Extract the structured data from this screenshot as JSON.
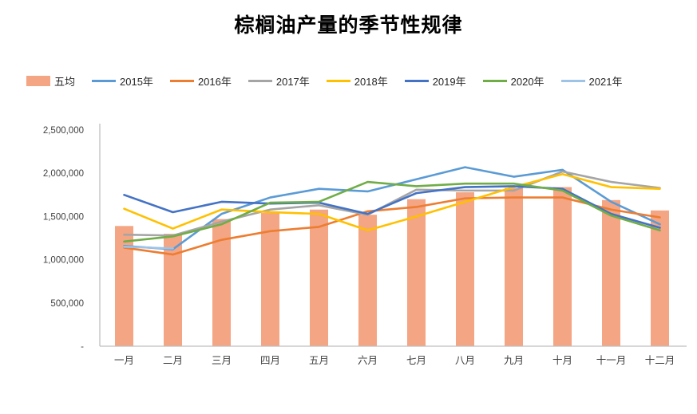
{
  "title": "棕榈油产量的季节性规律",
  "colors": {
    "axis_line": "#bfbfbf",
    "tick_text": "#404040",
    "title_text": "#000000",
    "background": "#ffffff"
  },
  "chart_data": {
    "type": "combo-bar-line",
    "title": "棕榈油产量的季节性规律",
    "xlabel": "",
    "ylabel": "",
    "ylim": [
      0,
      2500000
    ],
    "grid": false,
    "legend_position": "top-left",
    "categories": [
      "一月",
      "二月",
      "三月",
      "四月",
      "五月",
      "六月",
      "七月",
      "八月",
      "九月",
      "十月",
      "十一月",
      "十二月"
    ],
    "y_ticks": [
      {
        "value": 0,
        "label": "-"
      },
      {
        "value": 500000,
        "label": "500,000"
      },
      {
        "value": 1000000,
        "label": "1,000,000"
      },
      {
        "value": 1500000,
        "label": "1,500,000"
      },
      {
        "value": 2000000,
        "label": "2,000,000"
      },
      {
        "value": 2500000,
        "label": "2,500,000"
      }
    ],
    "bar_series": {
      "name": "五均",
      "color": "#f4a583",
      "values": [
        1390000,
        1300000,
        1470000,
        1540000,
        1580000,
        1520000,
        1700000,
        1780000,
        1830000,
        1840000,
        1690000,
        1570000
      ]
    },
    "line_series": [
      {
        "name": "2015年",
        "color": "#5b9bd5",
        "values": [
          1160000,
          1120000,
          1530000,
          1720000,
          1820000,
          1790000,
          1930000,
          2070000,
          1960000,
          2040000,
          1670000,
          1410000
        ]
      },
      {
        "name": "2016年",
        "color": "#ed7d31",
        "values": [
          1140000,
          1060000,
          1230000,
          1330000,
          1380000,
          1560000,
          1610000,
          1710000,
          1720000,
          1720000,
          1580000,
          1490000
        ]
      },
      {
        "name": "2017年",
        "color": "#a5a5a5",
        "values": [
          1290000,
          1280000,
          1440000,
          1580000,
          1630000,
          1520000,
          1810000,
          1800000,
          1800000,
          2020000,
          1900000,
          1830000
        ]
      },
      {
        "name": "2018年",
        "color": "#ffc000",
        "values": [
          1590000,
          1360000,
          1580000,
          1550000,
          1530000,
          1340000,
          1500000,
          1670000,
          1840000,
          1990000,
          1840000,
          1820000
        ]
      },
      {
        "name": "2019年",
        "color": "#4472c4",
        "values": [
          1750000,
          1550000,
          1670000,
          1650000,
          1660000,
          1530000,
          1770000,
          1840000,
          1850000,
          1820000,
          1530000,
          1370000
        ]
      },
      {
        "name": "2020年",
        "color": "#70ad47",
        "values": [
          1210000,
          1270000,
          1410000,
          1660000,
          1670000,
          1900000,
          1850000,
          1880000,
          1880000,
          1800000,
          1510000,
          1340000
        ]
      },
      {
        "name": "2021年",
        "color": "#9dc3e6",
        "values": [
          1150000,
          1130000,
          null,
          null,
          null,
          null,
          null,
          null,
          null,
          null,
          null,
          null
        ]
      }
    ]
  }
}
